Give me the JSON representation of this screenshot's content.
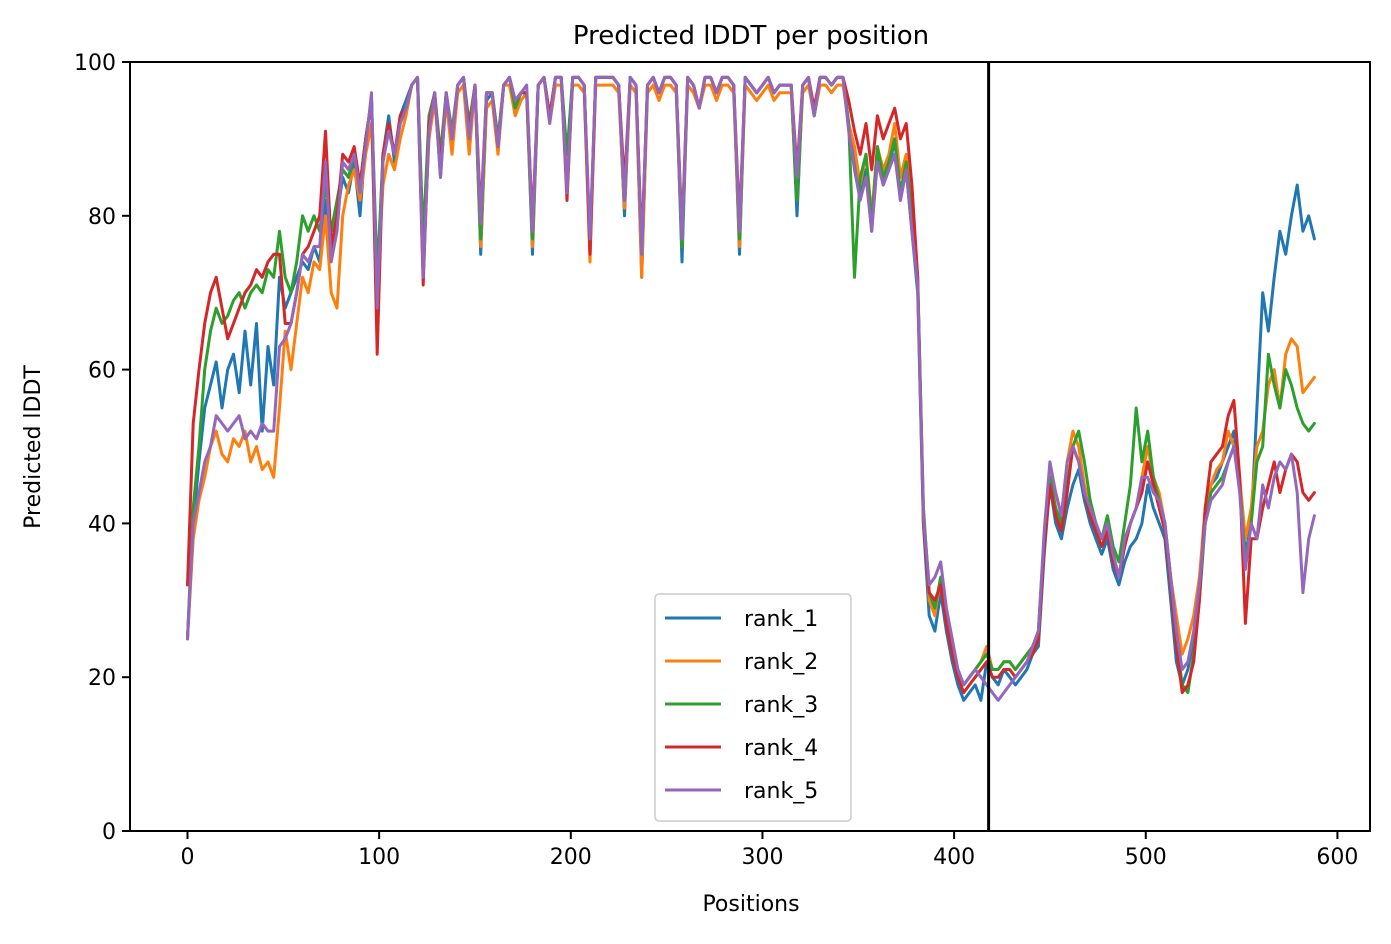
{
  "chart_data": {
    "type": "line",
    "title": "Predicted lDDT per position",
    "xlabel": "Positions",
    "ylabel": "Predicted lDDT",
    "xlim": [
      -30,
      617
    ],
    "ylim": [
      0,
      100
    ],
    "xticks": [
      0,
      100,
      200,
      300,
      400,
      500,
      600
    ],
    "yticks": [
      0,
      20,
      40,
      60,
      80,
      100
    ],
    "grid": false,
    "legend_position": "lower-center",
    "vertical_line": {
      "x": 418,
      "color": "#000000"
    },
    "x": [
      0,
      3,
      6,
      9,
      12,
      15,
      18,
      21,
      24,
      27,
      30,
      33,
      36,
      39,
      42,
      45,
      48,
      51,
      54,
      57,
      60,
      63,
      66,
      69,
      72,
      75,
      78,
      81,
      84,
      87,
      90,
      93,
      96,
      99,
      102,
      105,
      108,
      111,
      114,
      117,
      120,
      123,
      126,
      129,
      132,
      135,
      138,
      141,
      144,
      147,
      150,
      153,
      156,
      159,
      162,
      165,
      168,
      171,
      174,
      177,
      180,
      183,
      186,
      189,
      192,
      195,
      198,
      201,
      204,
      207,
      210,
      213,
      216,
      219,
      222,
      225,
      228,
      231,
      234,
      237,
      240,
      243,
      246,
      249,
      252,
      255,
      258,
      261,
      264,
      267,
      270,
      273,
      276,
      279,
      282,
      285,
      288,
      291,
      294,
      297,
      300,
      303,
      306,
      309,
      312,
      315,
      318,
      321,
      324,
      327,
      330,
      333,
      336,
      339,
      342,
      345,
      348,
      351,
      354,
      357,
      360,
      363,
      366,
      369,
      372,
      375,
      378,
      381,
      384,
      387,
      390,
      393,
      396,
      399,
      402,
      405,
      408,
      411,
      414,
      417,
      420,
      423,
      426,
      429,
      432,
      435,
      438,
      441,
      444,
      447,
      450,
      453,
      456,
      459,
      462,
      465,
      468,
      471,
      474,
      477,
      480,
      483,
      486,
      489,
      492,
      495,
      498,
      501,
      504,
      507,
      510,
      513,
      516,
      519,
      522,
      525,
      528,
      531,
      534,
      537,
      540,
      543,
      546,
      549,
      552,
      555,
      558,
      561,
      564,
      567,
      570,
      573,
      576,
      579,
      582,
      585,
      588
    ],
    "series": [
      {
        "name": "rank_1",
        "color": "#1f77b4",
        "values": [
          25,
          40,
          48,
          55,
          58,
          61,
          55,
          60,
          62,
          57,
          65,
          58,
          66,
          52,
          63,
          58,
          72,
          68,
          70,
          72,
          74,
          73,
          76,
          74,
          82,
          75,
          80,
          85,
          83,
          87,
          80,
          90,
          95,
          70,
          88,
          93,
          87,
          93,
          95,
          97,
          98,
          75,
          92,
          96,
          85,
          96,
          90,
          97,
          98,
          90,
          97,
          75,
          95,
          96,
          90,
          97,
          98,
          95,
          96,
          96,
          75,
          97,
          98,
          93,
          98,
          98,
          87,
          98,
          98,
          97,
          75,
          98,
          98,
          98,
          98,
          97,
          80,
          98,
          97,
          72,
          97,
          98,
          96,
          98,
          98,
          97,
          74,
          98,
          97,
          94,
          98,
          98,
          96,
          98,
          98,
          97,
          75,
          98,
          97,
          96,
          97,
          98,
          96,
          97,
          97,
          97,
          80,
          97,
          98,
          93,
          98,
          98,
          97,
          98,
          98,
          92,
          88,
          83,
          86,
          78,
          88,
          84,
          86,
          90,
          82,
          86,
          78,
          70,
          40,
          28,
          26,
          31,
          26,
          22,
          19,
          17,
          18,
          19,
          17,
          22,
          20,
          19,
          21,
          20,
          19,
          20,
          21,
          23,
          24,
          36,
          45,
          40,
          38,
          42,
          45,
          47,
          43,
          40,
          38,
          36,
          38,
          34,
          32,
          35,
          37,
          38,
          40,
          45,
          42,
          40,
          38,
          30,
          22,
          19,
          21,
          25,
          32,
          40,
          45,
          46,
          48,
          50,
          52,
          45,
          36,
          40,
          55,
          70,
          65,
          72,
          78,
          75,
          80,
          84,
          78,
          80,
          77
        ]
      },
      {
        "name": "rank_2",
        "color": "#ff7f0e",
        "values": [
          25,
          38,
          43,
          46,
          50,
          52,
          49,
          48,
          51,
          50,
          52,
          48,
          50,
          47,
          48,
          46,
          55,
          65,
          60,
          66,
          72,
          70,
          74,
          73,
          80,
          70,
          68,
          80,
          84,
          86,
          82,
          88,
          92,
          70,
          84,
          88,
          86,
          90,
          93,
          97,
          98,
          74,
          90,
          95,
          86,
          95,
          88,
          96,
          97,
          88,
          97,
          76,
          94,
          95,
          88,
          97,
          97,
          93,
          95,
          96,
          76,
          97,
          98,
          92,
          97,
          97,
          86,
          97,
          97,
          96,
          74,
          97,
          97,
          97,
          97,
          96,
          81,
          97,
          96,
          72,
          96,
          97,
          95,
          97,
          97,
          96,
          76,
          97,
          96,
          94,
          97,
          97,
          95,
          97,
          97,
          96,
          76,
          97,
          96,
          95,
          96,
          97,
          95,
          96,
          96,
          96,
          82,
          96,
          97,
          93,
          97,
          97,
          96,
          97,
          97,
          92,
          89,
          84,
          88,
          80,
          89,
          86,
          88,
          92,
          85,
          88,
          80,
          71,
          42,
          30,
          28,
          33,
          28,
          24,
          21,
          19,
          20,
          21,
          22,
          24,
          21,
          21,
          22,
          22,
          21,
          22,
          23,
          24,
          26,
          38,
          47,
          44,
          41,
          48,
          52,
          50,
          45,
          42,
          40,
          38,
          40,
          36,
          33,
          38,
          40,
          42,
          46,
          50,
          46,
          44,
          40,
          33,
          28,
          23,
          25,
          28,
          33,
          42,
          45,
          47,
          48,
          52,
          50,
          46,
          38,
          42,
          50,
          52,
          58,
          60,
          55,
          62,
          64,
          63,
          57,
          58,
          59
        ]
      },
      {
        "name": "rank_3",
        "color": "#2ca02c",
        "values": [
          25,
          42,
          50,
          60,
          65,
          68,
          66,
          67,
          69,
          70,
          68,
          70,
          71,
          70,
          73,
          72,
          78,
          72,
          70,
          74,
          80,
          78,
          80,
          78,
          84,
          78,
          82,
          86,
          85,
          88,
          84,
          90,
          95,
          72,
          88,
          92,
          88,
          92,
          94,
          97,
          98,
          77,
          93,
          96,
          88,
          96,
          91,
          97,
          98,
          92,
          97,
          77,
          96,
          96,
          90,
          97,
          98,
          94,
          96,
          96,
          77,
          97,
          98,
          93,
          98,
          98,
          88,
          98,
          98,
          97,
          76,
          98,
          98,
          98,
          98,
          97,
          82,
          98,
          97,
          75,
          97,
          98,
          96,
          98,
          98,
          97,
          76,
          98,
          97,
          94,
          98,
          98,
          96,
          98,
          98,
          97,
          77,
          98,
          97,
          96,
          97,
          98,
          96,
          97,
          97,
          97,
          82,
          97,
          98,
          93,
          98,
          98,
          97,
          98,
          98,
          92,
          72,
          85,
          88,
          79,
          89,
          85,
          87,
          90,
          83,
          87,
          80,
          72,
          42,
          31,
          29,
          33,
          28,
          24,
          21,
          19,
          20,
          21,
          22,
          23,
          21,
          21,
          22,
          22,
          21,
          22,
          23,
          24,
          26,
          38,
          46,
          42,
          40,
          45,
          50,
          52,
          48,
          43,
          40,
          38,
          41,
          37,
          35,
          40,
          45,
          55,
          48,
          52,
          46,
          43,
          40,
          33,
          25,
          19,
          18,
          23,
          30,
          40,
          44,
          45,
          46,
          48,
          50,
          45,
          35,
          40,
          48,
          50,
          62,
          58,
          55,
          60,
          58,
          55,
          53,
          52,
          53
        ]
      },
      {
        "name": "rank_4",
        "color": "#d62728",
        "values": [
          32,
          53,
          60,
          66,
          70,
          72,
          68,
          64,
          66,
          68,
          70,
          71,
          73,
          72,
          74,
          75,
          75,
          66,
          66,
          70,
          75,
          76,
          78,
          80,
          91,
          76,
          80,
          88,
          87,
          89,
          84,
          90,
          95,
          62,
          88,
          92,
          88,
          93,
          94,
          97,
          98,
          71,
          92,
          96,
          86,
          96,
          90,
          97,
          98,
          91,
          97,
          80,
          96,
          96,
          89,
          97,
          98,
          95,
          96,
          96,
          79,
          97,
          98,
          93,
          98,
          98,
          82,
          98,
          98,
          97,
          75,
          98,
          98,
          98,
          98,
          97,
          84,
          98,
          97,
          76,
          97,
          98,
          96,
          98,
          98,
          97,
          78,
          98,
          97,
          94,
          98,
          98,
          96,
          98,
          98,
          97,
          79,
          98,
          97,
          96,
          97,
          98,
          96,
          97,
          97,
          97,
          86,
          97,
          98,
          94,
          98,
          98,
          97,
          98,
          98,
          95,
          91,
          88,
          92,
          86,
          93,
          90,
          92,
          94,
          90,
          92,
          84,
          72,
          40,
          31,
          30,
          32,
          27,
          23,
          20,
          18,
          19,
          20,
          21,
          22,
          20,
          20,
          21,
          21,
          20,
          21,
          22,
          23,
          25,
          37,
          45,
          41,
          39,
          44,
          50,
          48,
          44,
          41,
          39,
          37,
          39,
          35,
          33,
          37,
          40,
          42,
          44,
          48,
          45,
          42,
          39,
          32,
          24,
          18,
          19,
          22,
          30,
          42,
          48,
          49,
          50,
          54,
          56,
          46,
          27,
          38,
          38,
          42,
          45,
          48,
          44,
          47,
          49,
          48,
          44,
          43,
          44
        ]
      },
      {
        "name": "rank_5",
        "color": "#9467bd",
        "values": [
          25,
          40,
          44,
          48,
          50,
          54,
          53,
          52,
          53,
          54,
          51,
          52,
          51,
          53,
          52,
          52,
          63,
          64,
          66,
          70,
          75,
          74,
          76,
          76,
          87,
          74,
          78,
          87,
          86,
          88,
          83,
          89,
          96,
          68,
          87,
          91,
          88,
          92,
          94,
          97,
          98,
          72,
          91,
          96,
          85,
          96,
          90,
          97,
          98,
          90,
          97,
          79,
          96,
          96,
          89,
          97,
          98,
          95,
          96,
          97,
          78,
          97,
          98,
          92,
          98,
          98,
          83,
          98,
          98,
          97,
          77,
          98,
          98,
          98,
          98,
          97,
          82,
          98,
          97,
          75,
          97,
          98,
          96,
          98,
          98,
          97,
          77,
          98,
          97,
          94,
          98,
          98,
          96,
          98,
          98,
          97,
          78,
          98,
          97,
          96,
          97,
          98,
          96,
          97,
          97,
          97,
          85,
          97,
          98,
          93,
          98,
          98,
          97,
          98,
          98,
          91,
          86,
          82,
          85,
          78,
          87,
          84,
          86,
          88,
          82,
          86,
          78,
          71,
          41,
          32,
          33,
          35,
          29,
          25,
          21,
          19,
          20,
          21,
          20,
          19,
          18,
          17,
          18,
          19,
          20,
          21,
          22,
          24,
          26,
          39,
          48,
          44,
          41,
          48,
          50,
          48,
          44,
          42,
          40,
          38,
          40,
          36,
          33,
          38,
          40,
          42,
          46,
          46,
          44,
          43,
          40,
          33,
          26,
          21,
          22,
          26,
          32,
          40,
          43,
          44,
          45,
          48,
          50,
          44,
          34,
          40,
          38,
          45,
          42,
          46,
          48,
          47,
          49,
          44,
          31,
          38,
          41
        ]
      }
    ]
  }
}
